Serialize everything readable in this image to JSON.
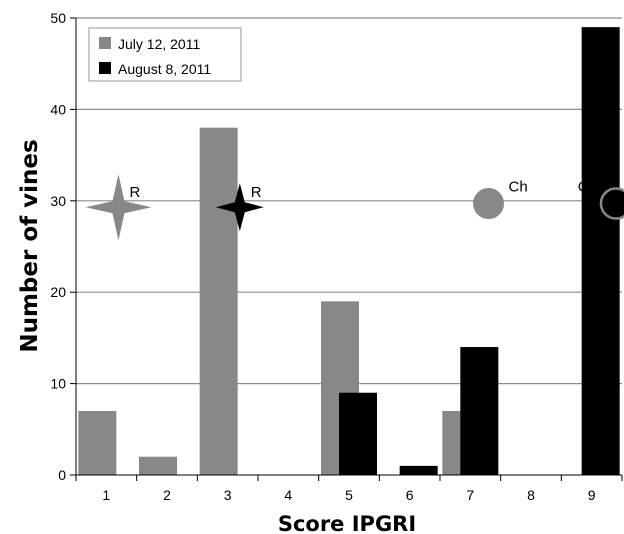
{
  "chart_data": {
    "type": "bar",
    "categories": [
      "1",
      "2",
      "3",
      "4",
      "5",
      "6",
      "7",
      "8",
      "9"
    ],
    "series": [
      {
        "name": "July 12, 2011",
        "color": "#888888",
        "values": [
          7,
          2,
          38,
          0,
          19,
          0,
          7,
          0,
          0
        ]
      },
      {
        "name": "August 8, 2011",
        "color": "#000000",
        "values": [
          0,
          0,
          0,
          0,
          9,
          1,
          14,
          0,
          49
        ]
      }
    ],
    "xlabel": "Score IPGRI",
    "ylabel": "Number of vines",
    "ylim": [
      0,
      50
    ],
    "yticks": [
      "0",
      "10",
      "20",
      "30",
      "40",
      "50"
    ],
    "grid": true,
    "legend_position": "top-left",
    "annotations": [
      {
        "label": "R",
        "symbol": "star",
        "color": "#888888",
        "x": 1.2,
        "y": 29.3
      },
      {
        "label": "R",
        "symbol": "star",
        "color": "#000000",
        "x": 3.2,
        "y": 29.3
      },
      {
        "label": "Ch",
        "symbol": "filled-circle",
        "color": "#888888",
        "x": 7.3,
        "y": 29.7
      },
      {
        "label": "Ch",
        "symbol": "open-circle",
        "color": "#888888",
        "x": 9.4,
        "y": 29.7
      }
    ]
  }
}
